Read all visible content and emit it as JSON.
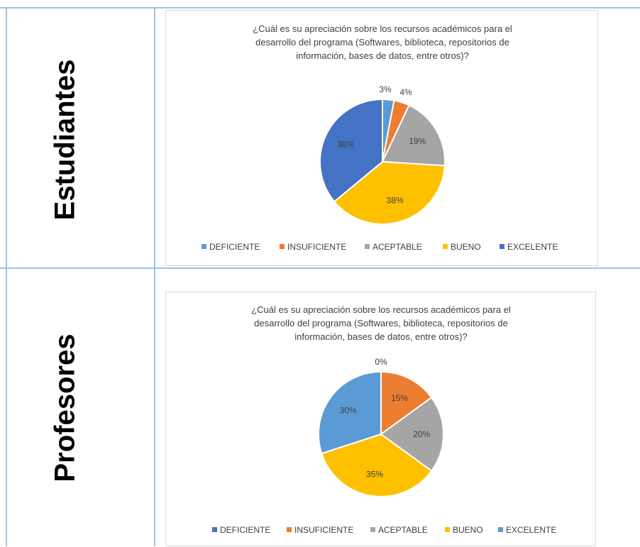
{
  "table": {
    "rows": [
      {
        "label": "Estudiantes"
      },
      {
        "label": "Profesores"
      }
    ]
  },
  "chart_data": [
    {
      "type": "pie",
      "title_lines": [
        "¿Cuál es su apreciación sobre los recursos académicos para el",
        "desarrollo del programa (Softwares, biblioteca, repositorios de",
        "información, bases de datos, entre otros)?"
      ],
      "categories": [
        "DEFICIENTE",
        "INSUFICIENTE",
        "ACEPTABLE",
        "BUENO",
        "EXCELENTE"
      ],
      "values": [
        3,
        4,
        19,
        38,
        36
      ],
      "labels": [
        "3%",
        "4%",
        "19%",
        "38%",
        "36%"
      ],
      "colors": [
        "#5b9bd5",
        "#ed7d31",
        "#a5a5a5",
        "#ffc000",
        "#4472c4"
      ],
      "legend": "bottom"
    },
    {
      "type": "pie",
      "title_lines": [
        "¿Cuál es su apreciación sobre los recursos académicos para el",
        "desarrollo del programa (Softwares, biblioteca, repositorios de",
        "información, bases de datos, entre otros)?"
      ],
      "categories": [
        "DEFICIENTE",
        "INSUFICIENTE",
        "ACEPTABLE",
        "BUENO",
        "EXCELENTE"
      ],
      "values": [
        0,
        15,
        20,
        35,
        30
      ],
      "labels": [
        "0%",
        "15%",
        "20%",
        "35%",
        "30%"
      ],
      "colors": [
        "#4472c4",
        "#ed7d31",
        "#a5a5a5",
        "#ffc000",
        "#5b9bd5"
      ],
      "legend": "bottom"
    }
  ]
}
